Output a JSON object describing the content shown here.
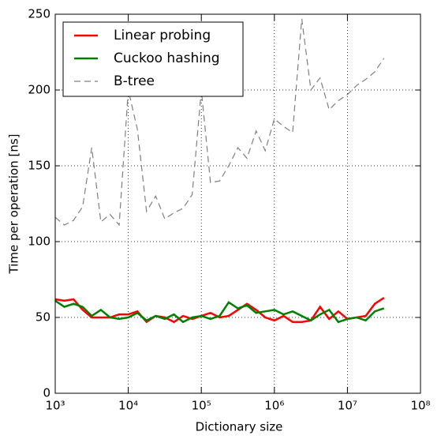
{
  "chart_data": {
    "type": "line",
    "xlabel": "Dictionary size",
    "ylabel": "Time per operation [ns]",
    "x": [
      1000,
      1334,
      1778,
      2371,
      3162,
      4217,
      5623,
      7499,
      10000,
      13335,
      17783,
      23714,
      31623,
      42170,
      56234,
      74989,
      100000,
      133352,
      177828,
      237137,
      316228,
      421697,
      562341,
      749894,
      1000000,
      1333521,
      1778279,
      2371374,
      3162278,
      4216965,
      5623413,
      7498942,
      10000000,
      13335214,
      17782794,
      23713737,
      31622777
    ],
    "series": [
      {
        "name": "Linear probing",
        "color": "#ff0000",
        "dash": "solid",
        "values": [
          62,
          61,
          62,
          55,
          50,
          50,
          50,
          52,
          52,
          54,
          47,
          51,
          50,
          47,
          51,
          49,
          51,
          53,
          50,
          51,
          55,
          59,
          55,
          50,
          48,
          51,
          47,
          47,
          48,
          57,
          49,
          54,
          49,
          50,
          51,
          59,
          63
        ]
      },
      {
        "name": "Cuckoo hashing",
        "color": "#008000",
        "dash": "solid",
        "values": [
          61,
          57,
          59,
          57,
          51,
          55,
          50,
          49,
          50,
          53,
          48,
          51,
          49,
          52,
          47,
          50,
          51,
          49,
          51,
          60,
          56,
          58,
          53,
          54,
          55,
          52,
          54,
          51,
          48,
          52,
          55,
          47,
          49,
          50,
          48,
          54,
          56
        ]
      },
      {
        "name": "B-tree",
        "color": "#7f7f7f",
        "dash": "dashed",
        "values": [
          116,
          111,
          114,
          123,
          162,
          113,
          118,
          111,
          200,
          174,
          120,
          130,
          115,
          119,
          122,
          131,
          200,
          139,
          140,
          150,
          162,
          155,
          173,
          160,
          181,
          176,
          172,
          247,
          200,
          208,
          187,
          193,
          197,
          203,
          207,
          212,
          221
        ]
      }
    ],
    "xscale": "log",
    "xlim": [
      1000,
      100000000
    ],
    "xticks": [
      {
        "value": 1000,
        "label": "10³"
      },
      {
        "value": 10000,
        "label": "10⁴"
      },
      {
        "value": 100000,
        "label": "10⁵"
      },
      {
        "value": 1000000,
        "label": "10⁶"
      },
      {
        "value": 10000000,
        "label": "10⁷"
      },
      {
        "value": 100000000,
        "label": "10⁸"
      }
    ],
    "ylim": [
      0,
      250
    ],
    "yticks": [
      0,
      50,
      100,
      150,
      200,
      250
    ],
    "grid": true,
    "legend": "upper left"
  }
}
